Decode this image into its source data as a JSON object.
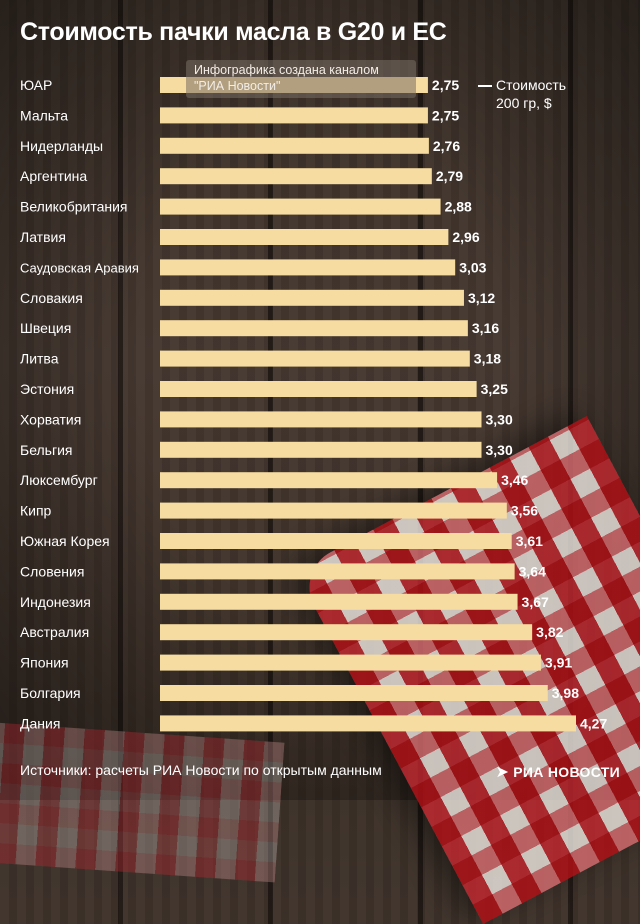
{
  "title": "Стоимость пачки масла в G20 и ЕС",
  "credit": {
    "line1": "Инфографика создана каналом",
    "line2": "\"РИА Новости\""
  },
  "legend": {
    "line1": "Стоимость",
    "line2": "200 гр, $"
  },
  "source": "Источники: расчеты РИА Новости по открытым данным",
  "logo": {
    "icon": "ria-arrow-icon",
    "text": "РИА НОВОСТИ"
  },
  "colors": {
    "bar": "#f6dca0",
    "text": "#ffffff"
  },
  "chart_data": {
    "type": "bar",
    "orientation": "horizontal",
    "title": "Стоимость пачки масла в G20 и ЕС",
    "series_label": "Стоимость 200 гр, $",
    "decimal_separator": ",",
    "categories": [
      "ЮАР",
      "Мальта",
      "Нидерланды",
      "Аргентина",
      "Великобритания",
      "Латвия",
      "Саудовская Аравия",
      "Словакия",
      "Швеция",
      "Литва",
      "Эстония",
      "Хорватия",
      "Бельгия",
      "Люксембург",
      "Кипр",
      "Южная Корея",
      "Словения",
      "Индонезия",
      "Австралия",
      "Япония",
      "Болгария",
      "Дания"
    ],
    "values": [
      2.75,
      2.75,
      2.76,
      2.79,
      2.88,
      2.96,
      3.03,
      3.12,
      3.16,
      3.18,
      3.25,
      3.3,
      3.3,
      3.46,
      3.56,
      3.61,
      3.64,
      3.67,
      3.82,
      3.91,
      3.98,
      4.27
    ],
    "xlim": [
      0,
      4.27
    ],
    "grid": false,
    "legend_position": "top-right"
  }
}
